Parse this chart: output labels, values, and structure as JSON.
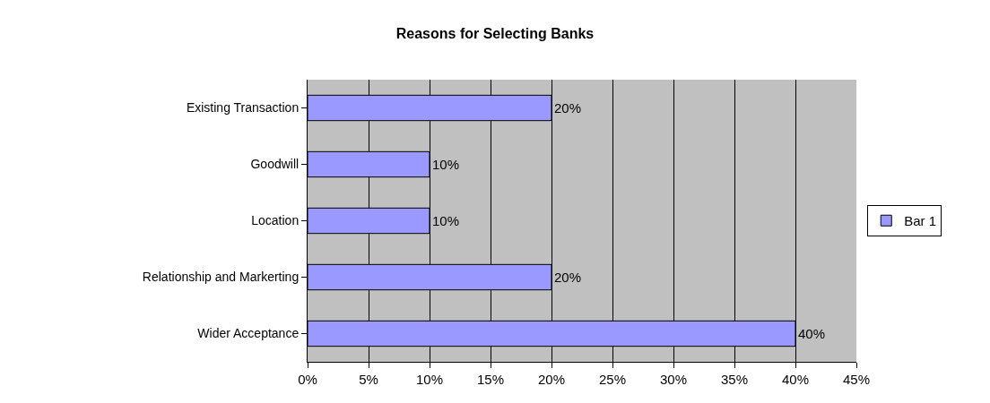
{
  "chart_data": {
    "type": "bar",
    "orientation": "horizontal",
    "title": "Reasons for Selecting Banks",
    "categories": [
      "Existing Transaction",
      "Goodwill",
      "Location",
      "Relationship and Markerting",
      "Wider Acceptance"
    ],
    "series": [
      {
        "name": "Bar 1",
        "color": "#9999ff",
        "values": [
          20,
          10,
          10,
          20,
          40
        ],
        "value_labels": [
          "20%",
          "10%",
          "10%",
          "20%",
          "40%"
        ]
      }
    ],
    "xlim": [
      0,
      45
    ],
    "xticks": [
      {
        "value": 0,
        "label": "0%"
      },
      {
        "value": 5,
        "label": "5%"
      },
      {
        "value": 10,
        "label": "10%"
      },
      {
        "value": 15,
        "label": "15%"
      },
      {
        "value": 20,
        "label": "20%"
      },
      {
        "value": 25,
        "label": "25%"
      },
      {
        "value": 30,
        "label": "30%"
      },
      {
        "value": 35,
        "label": "35%"
      },
      {
        "value": 40,
        "label": "40%"
      },
      {
        "value": 45,
        "label": "45%"
      }
    ],
    "grid": "x",
    "legend": "right"
  }
}
